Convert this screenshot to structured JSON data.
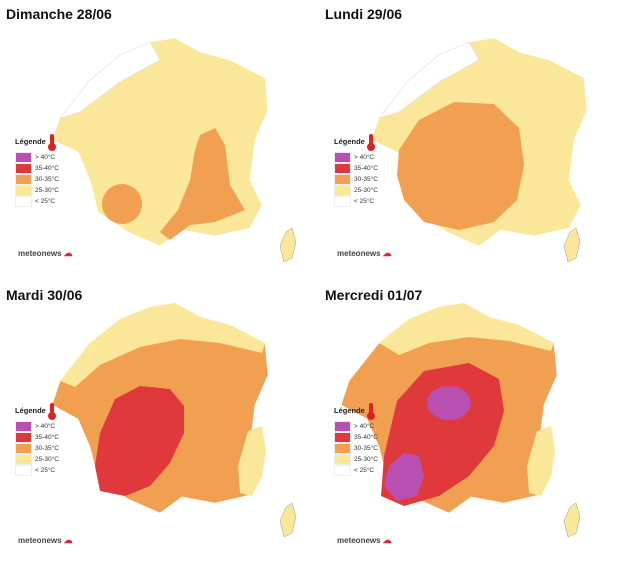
{
  "legend_title": "Légende",
  "legend": [
    {
      "label": "> 40°C",
      "color": "#b94fb0"
    },
    {
      "label": "35-40°C",
      "color": "#e0393c"
    },
    {
      "label": "30-35°C",
      "color": "#f0a050"
    },
    {
      "label": "25-30°C",
      "color": "#fbe79a"
    },
    {
      "label": "< 25°C",
      "color": "#ffffff"
    }
  ],
  "brand": "meteonews",
  "panels": [
    {
      "title": "Dimanche 28/06"
    },
    {
      "title": "Lundi 29/06"
    },
    {
      "title": "Mardi 30/06"
    },
    {
      "title": "Mercredi 01/07"
    }
  ],
  "icons": [
    "thermometer-icon",
    "cloud-icon"
  ]
}
